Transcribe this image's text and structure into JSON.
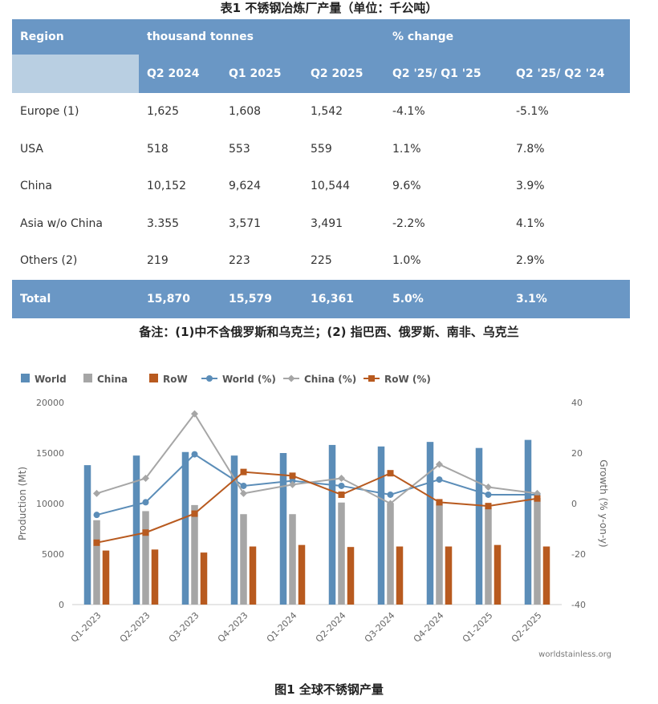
{
  "table_title": "表1 不锈钢冶炼厂产量（单位：千公吨）",
  "table": {
    "header_row1": [
      "Region",
      "thousand tonnes",
      "% change"
    ],
    "header_row2": [
      "",
      "Q2 2024",
      "Q1 2025",
      "Q2 2025",
      "Q2 '25/ Q1 '25",
      "Q2 '25/ Q2 '24"
    ],
    "rows": [
      [
        "Europe (1)",
        "1,625",
        "1,608",
        "1,542",
        "-4.1%",
        "-5.1%"
      ],
      [
        "USA",
        "518",
        "553",
        "559",
        "1.1%",
        "7.8%"
      ],
      [
        "China",
        "10,152",
        "9,624",
        "10,544",
        "9.6%",
        "3.9%"
      ],
      [
        "Asia w/o China",
        "3.355",
        "3,571",
        "3,491",
        "-2.2%",
        "4.1%"
      ],
      [
        "Others (2)",
        "219",
        "223",
        "225",
        "1.0%",
        "2.9%"
      ]
    ],
    "total": [
      "Total",
      "15,870",
      "15,579",
      "16,361",
      "5.0%",
      "3.1%"
    ]
  },
  "table_note": "备注：(1)中不含俄罗斯和乌克兰；(2) 指巴西、俄罗斯、南非、乌克兰",
  "figure_caption": "图1 全球不锈钢产量",
  "chart_data": {
    "type": "bar",
    "categories": [
      "Q1-2023",
      "Q2-2023",
      "Q3-2023",
      "Q4-2023",
      "Q1-2024",
      "Q2-2024",
      "Q3-2024",
      "Q4-2024",
      "Q1-2025",
      "Q2-2025"
    ],
    "series": [
      {
        "name": "World",
        "kind": "bar",
        "axis": "left",
        "color": "#5b8db8",
        "values": [
          13800,
          14750,
          15100,
          14750,
          15000,
          15800,
          15650,
          16100,
          15500,
          16300
        ]
      },
      {
        "name": "China",
        "kind": "bar",
        "axis": "left",
        "color": "#a6a6a6",
        "values": [
          8350,
          9250,
          9850,
          8950,
          8950,
          10100,
          10000,
          10150,
          9650,
          10550
        ]
      },
      {
        "name": "RoW",
        "kind": "bar",
        "axis": "left",
        "color": "#b85a1f",
        "values": [
          5350,
          5450,
          5150,
          5750,
          5900,
          5700,
          5750,
          5750,
          5900,
          5750
        ]
      },
      {
        "name": "World (%)",
        "kind": "line",
        "axis": "right",
        "color": "#5b8db8",
        "marker": "circle",
        "values": [
          -4.5,
          0.5,
          19.5,
          7,
          9,
          7,
          3.5,
          9.5,
          3.5,
          3.5
        ]
      },
      {
        "name": "China (%)",
        "kind": "line",
        "axis": "right",
        "color": "#a6a6a6",
        "marker": "diamond",
        "values": [
          4,
          10,
          35.5,
          4,
          7.5,
          10,
          0,
          15.5,
          6.5,
          4
        ]
      },
      {
        "name": "RoW (%)",
        "kind": "line",
        "axis": "right",
        "color": "#b85a1f",
        "marker": "square",
        "values": [
          -15.5,
          -11.5,
          -4,
          12.5,
          11,
          3.5,
          12,
          0.5,
          -1,
          2
        ]
      }
    ],
    "ylabel": "Production (Mt)",
    "y2label": "Growth (% y-on-y)",
    "ylim": [
      0,
      20000
    ],
    "yticks": [
      0,
      5000,
      10000,
      15000,
      20000
    ],
    "y2lim": [
      -40,
      40
    ],
    "y2ticks": [
      -40,
      -20,
      0,
      20,
      40
    ],
    "grid": false,
    "legend_position": "top-left",
    "source": "worldstainless.org"
  }
}
